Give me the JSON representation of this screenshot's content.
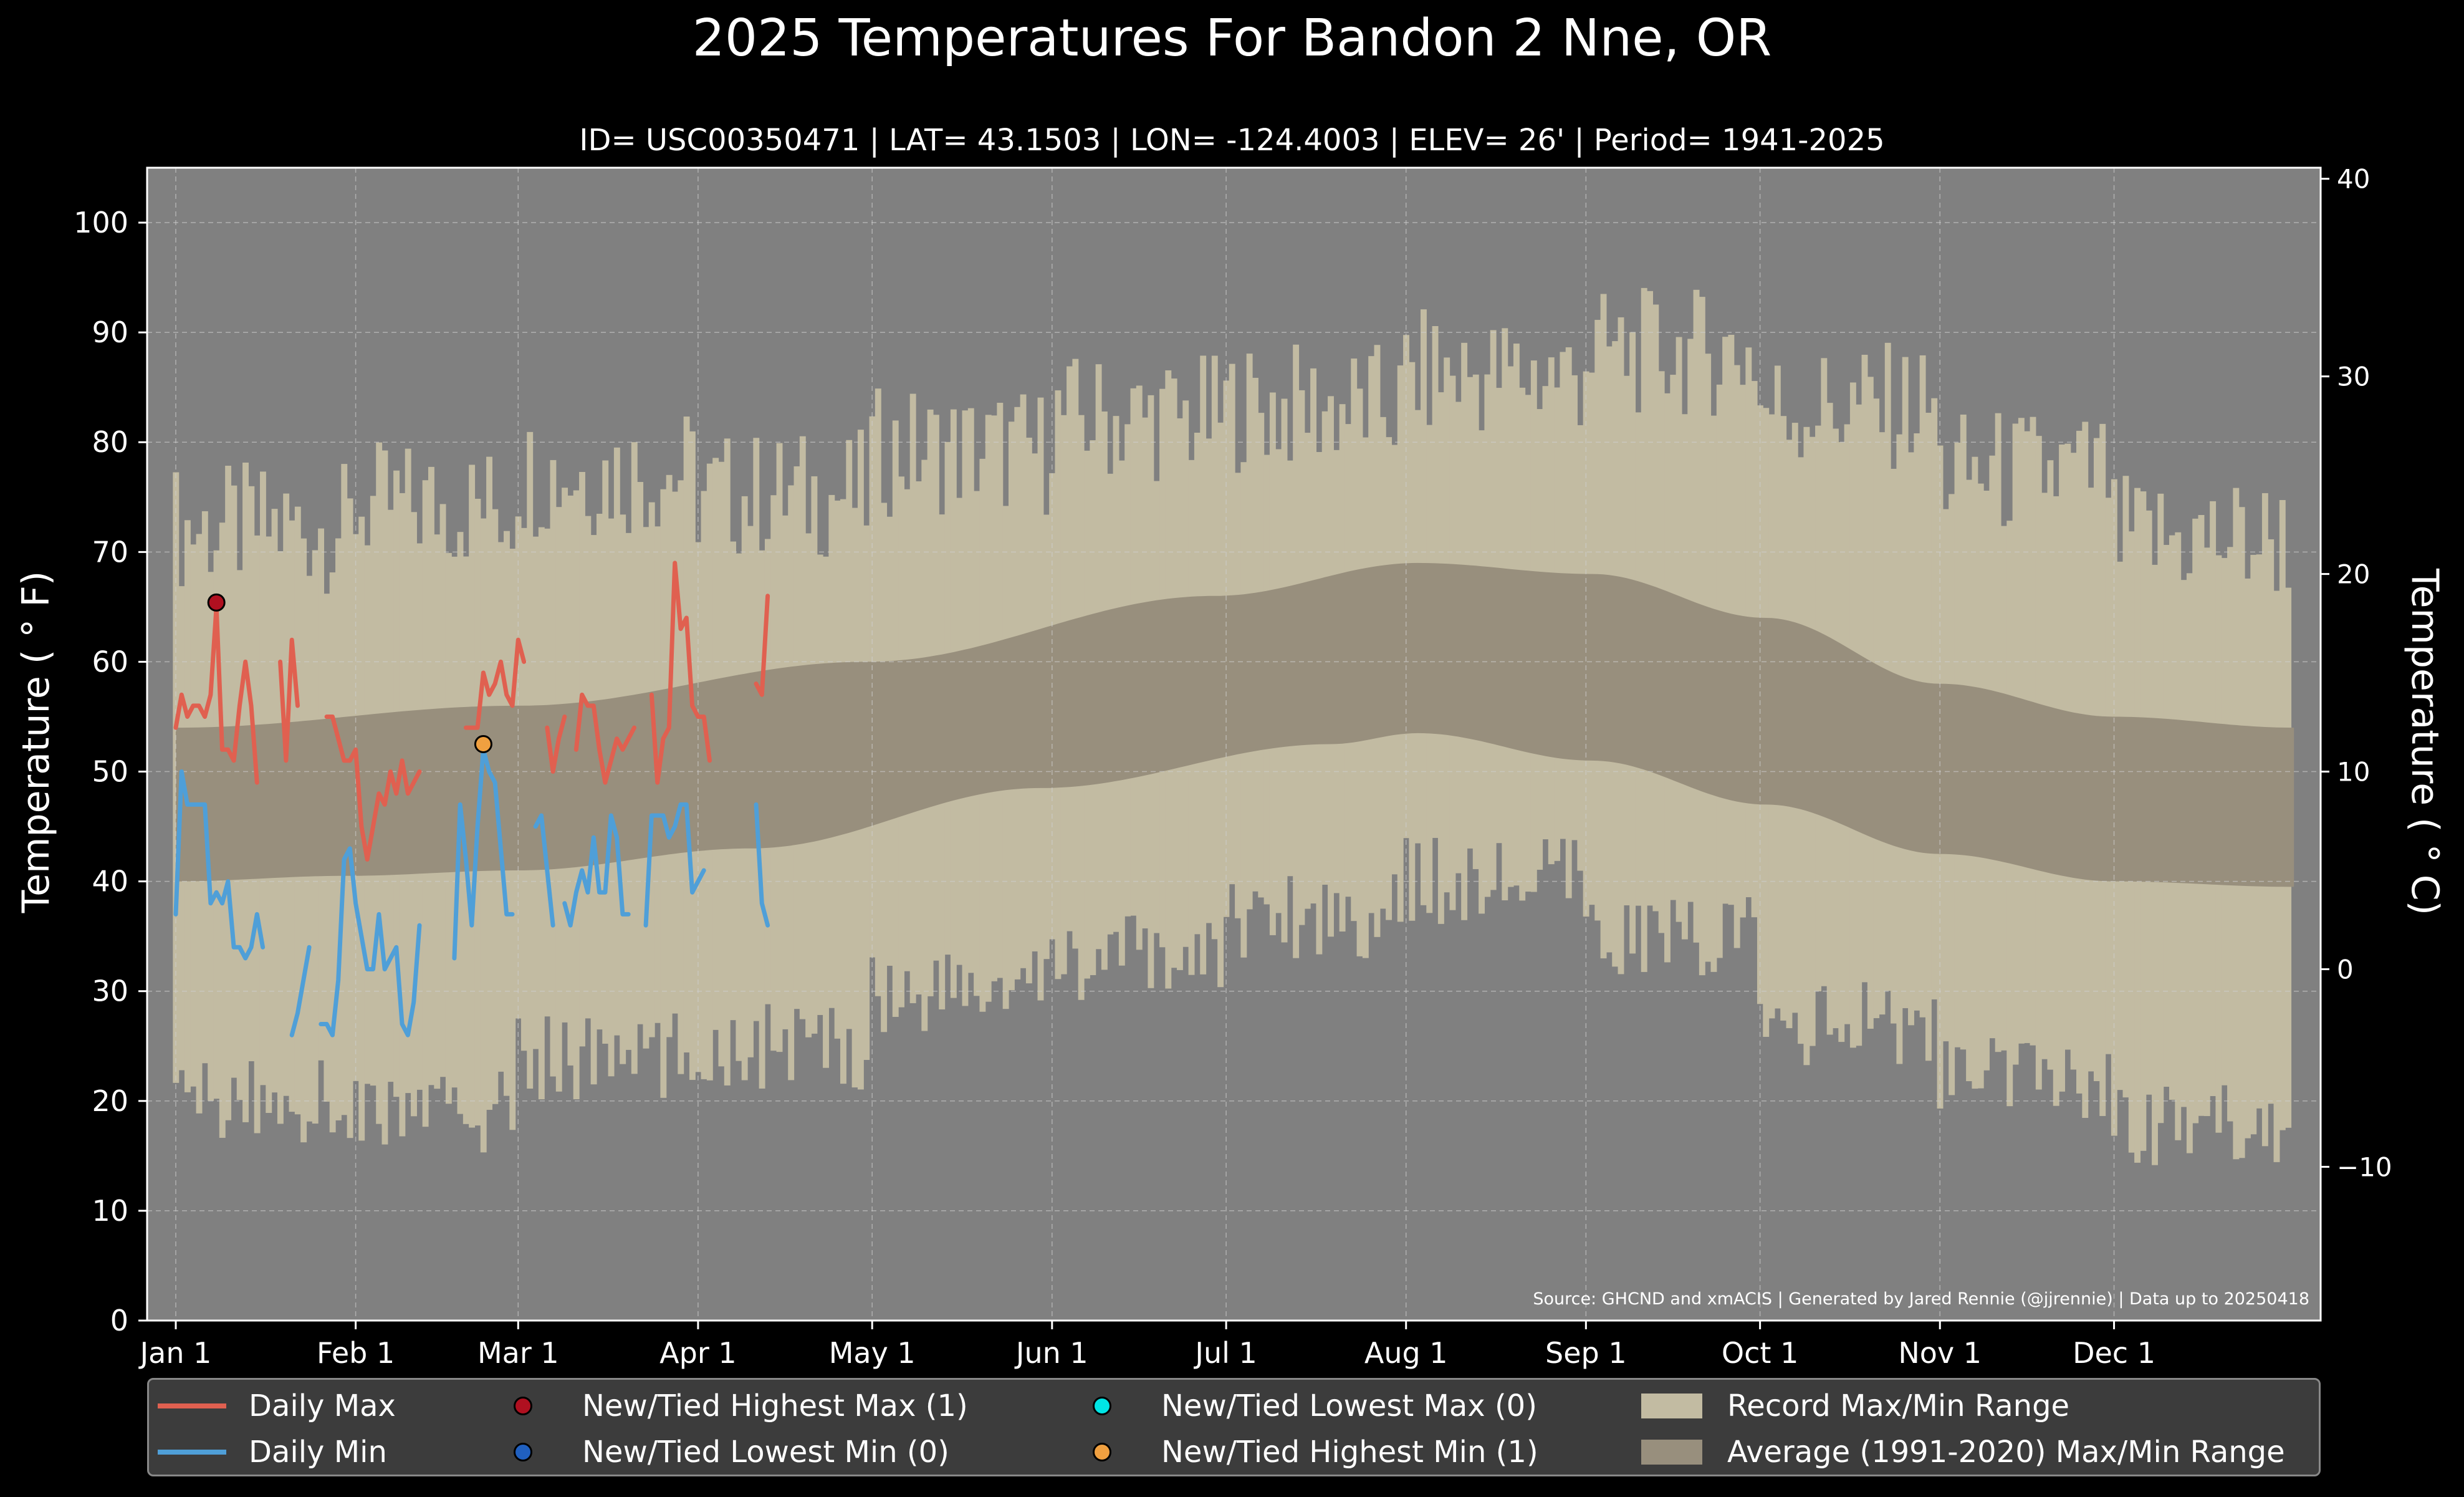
{
  "chart_data": {
    "type": "line",
    "title": "2025 Temperatures For Bandon 2 Nne, OR",
    "subtitle": "ID= USC00350471 | LAT= 43.1503 | LON= -124.4003 | ELEV= 26' | Period= 1941-2025",
    "ylabel": "Temperature ($^\\circ$F)",
    "ylabel_display": "Temperature ( ° F)",
    "ylabel2_display": "Temperature ( ° C)",
    "ylim": [
      0,
      105
    ],
    "y2lim": [
      -17.78,
      40.56
    ],
    "yticks": [
      "0",
      "10",
      "20",
      "30",
      "40",
      "50",
      "60",
      "70",
      "80",
      "90",
      "100"
    ],
    "y2ticks": [
      "−10",
      "0",
      "10",
      "20",
      "30",
      "40"
    ],
    "xticks": [
      "Jan 1",
      "Feb 1",
      "Mar 1",
      "Apr 1",
      "May 1",
      "Jun 1",
      "Jul 1",
      "Aug 1",
      "Sep 1",
      "Oct 1",
      "Nov 1",
      "Dec 1"
    ],
    "grid": true,
    "source": "Source: GHCND and xmACIS | Generated by Jared Rennie (@jjrennie) | Data up to 20250418",
    "record_max_monthly": [
      71,
      73,
      76,
      74,
      78,
      81,
      82,
      85,
      87,
      82,
      76,
      70
    ],
    "record_min_monthly": [
      20,
      19,
      24,
      25,
      30,
      33,
      37,
      40,
      35,
      27,
      22,
      18
    ],
    "avg_max_anchors": [
      [
        1,
        54
      ],
      [
        60,
        56
      ],
      [
        120,
        60
      ],
      [
        180,
        66
      ],
      [
        215,
        69
      ],
      [
        245,
        68
      ],
      [
        275,
        64
      ],
      [
        305,
        58
      ],
      [
        335,
        55
      ],
      [
        366,
        54
      ]
    ],
    "avg_min_anchors": [
      [
        1,
        40
      ],
      [
        30,
        40.5
      ],
      [
        60,
        41
      ],
      [
        100,
        43
      ],
      [
        150,
        48.5
      ],
      [
        200,
        52.5
      ],
      [
        215,
        53.5
      ],
      [
        245,
        51
      ],
      [
        275,
        47
      ],
      [
        305,
        42.5
      ],
      [
        335,
        40
      ],
      [
        366,
        39.5
      ]
    ],
    "series": [
      {
        "name": "Daily Max",
        "color": "#e06050",
        "segments": [
          {
            "start_day": 1,
            "values": [
              54,
              57,
              55,
              56,
              56,
              55,
              57,
              65,
              52,
              52,
              51,
              56,
              60,
              56,
              49
            ]
          },
          {
            "start_day": 19,
            "values": [
              60,
              51,
              62,
              56
            ]
          },
          {
            "start_day": 27,
            "values": [
              55,
              55,
              53,
              51,
              51,
              52,
              45,
              42,
              45,
              48,
              47,
              50,
              48,
              51,
              48,
              49,
              50
            ]
          },
          {
            "start_day": 51,
            "values": [
              54,
              54,
              54,
              59,
              57,
              58,
              60,
              57,
              56,
              62,
              60
            ]
          },
          {
            "start_day": 65,
            "values": [
              54,
              50,
              53,
              55
            ]
          },
          {
            "start_day": 70,
            "values": [
              52,
              57,
              56,
              56,
              52,
              49,
              51,
              53,
              52,
              53,
              54
            ]
          },
          {
            "start_day": 83,
            "values": [
              57,
              49,
              53,
              54,
              69,
              63,
              64,
              56,
              55,
              55,
              51
            ]
          },
          {
            "start_day": 101,
            "values": [
              58,
              57,
              66
            ]
          }
        ]
      },
      {
        "name": "Daily Min",
        "color": "#4f9fd8",
        "segments": [
          {
            "start_day": 1,
            "values": [
              37,
              50,
              47,
              47,
              47,
              47,
              38,
              39,
              38,
              40,
              34,
              34,
              33,
              34,
              37,
              34
            ]
          },
          {
            "start_day": 21,
            "values": [
              26,
              28,
              31,
              34
            ]
          },
          {
            "start_day": 26,
            "values": [
              27,
              27,
              26,
              31,
              42,
              43,
              38,
              35,
              32,
              32,
              37,
              32,
              33,
              34,
              27,
              26,
              29,
              36
            ]
          },
          {
            "start_day": 49,
            "values": [
              33,
              47,
              42,
              36,
              45,
              52,
              50,
              49,
              43,
              37,
              37
            ]
          },
          {
            "start_day": 63,
            "values": [
              45,
              46,
              41,
              36
            ]
          },
          {
            "start_day": 68,
            "values": [
              38,
              36,
              39,
              41,
              39,
              44,
              39,
              39,
              46,
              44,
              37,
              37
            ]
          },
          {
            "start_day": 82,
            "values": [
              36,
              46,
              46,
              46,
              44,
              45,
              47,
              47,
              39,
              40,
              41
            ]
          },
          {
            "start_day": 101,
            "values": [
              47,
              38,
              36
            ]
          }
        ]
      }
    ],
    "markers": [
      {
        "name": "New/Tied Highest Max",
        "day": 8,
        "value": 65.4,
        "color": "#b01020"
      },
      {
        "name": "New/Tied Highest Min",
        "day": 54,
        "value": 52.5,
        "color": "#f0a040"
      }
    ],
    "legend": {
      "placement": "bottom",
      "entries": [
        {
          "label": "Daily Max",
          "kind": "line",
          "color": "#e06050"
        },
        {
          "label": "Daily Min",
          "kind": "line",
          "color": "#4f9fd8"
        },
        {
          "label": "New/Tied Highest Max (1)",
          "kind": "dot",
          "color": "#b01020"
        },
        {
          "label": "New/Tied Lowest Min (0)",
          "kind": "dot",
          "color": "#2060c0"
        },
        {
          "label": "New/Tied Lowest Max (0)",
          "kind": "dot",
          "color": "#00e5e5"
        },
        {
          "label": "New/Tied Highest Min (1)",
          "kind": "dot",
          "color": "#f0a040"
        },
        {
          "label": "Record Max/Min Range",
          "kind": "patch",
          "color": "#c2bba2"
        },
        {
          "label": "Average (1991-2020) Max/Min Range",
          "kind": "patch",
          "color": "#988f7d"
        }
      ]
    },
    "colors": {
      "background": "#000000",
      "plot_background": "#808080",
      "record_range": "#c2bba2",
      "average_range": "#988f7d"
    }
  }
}
